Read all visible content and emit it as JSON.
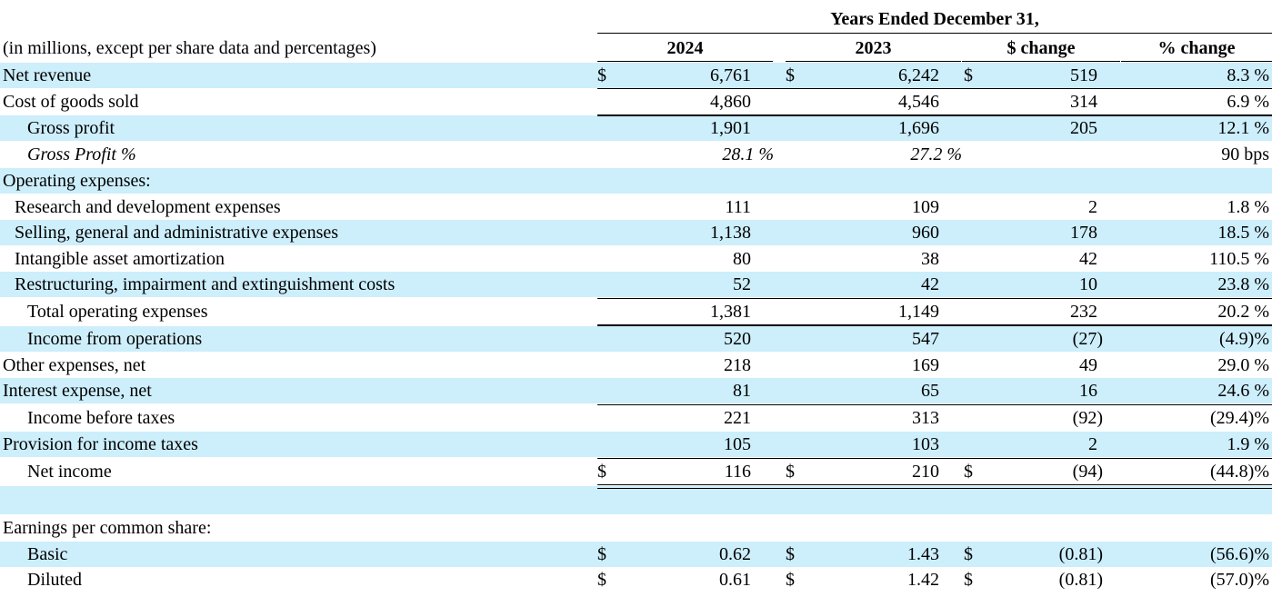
{
  "header": {
    "period_title": "Years Ended December 31,",
    "units_note": "(in millions, except per share data and percentages)",
    "columns": [
      "2024",
      "2023",
      "$ change",
      "% change"
    ]
  },
  "rows": [
    {
      "label": "Net revenue",
      "d": "$",
      "v2024": "6,761",
      "v2023": "6,242",
      "chg": "519",
      "pct": "8.3 %"
    },
    {
      "label": "Cost of goods sold",
      "v2024": "4,860",
      "v2023": "4,546",
      "chg": "314",
      "pct": "6.9 %"
    },
    {
      "label": "Gross profit",
      "v2024": "1,901",
      "v2023": "1,696",
      "chg": "205",
      "pct": "12.1 %"
    },
    {
      "label": "Gross Profit %",
      "v2024": "28.1 %",
      "v2023": "27.2 %",
      "chg": "",
      "pct": "90 bps"
    },
    {
      "label": "Operating expenses:",
      "v2024": "",
      "v2023": "",
      "chg": "",
      "pct": ""
    },
    {
      "label": "Research and development expenses",
      "v2024": "111",
      "v2023": "109",
      "chg": "2",
      "pct": "1.8 %"
    },
    {
      "label": "Selling, general and administrative expenses",
      "v2024": "1,138",
      "v2023": "960",
      "chg": "178",
      "pct": "18.5 %"
    },
    {
      "label": "Intangible asset amortization",
      "v2024": "80",
      "v2023": "38",
      "chg": "42",
      "pct": "110.5 %"
    },
    {
      "label": "Restructuring, impairment and extinguishment costs",
      "v2024": "52",
      "v2023": "42",
      "chg": "10",
      "pct": "23.8 %"
    },
    {
      "label": "Total operating expenses",
      "v2024": "1,381",
      "v2023": "1,149",
      "chg": "232",
      "pct": "20.2 %"
    },
    {
      "label": "Income from operations",
      "v2024": "520",
      "v2023": "547",
      "chg": "(27)",
      "pct": "(4.9)%"
    },
    {
      "label": "Other expenses, net",
      "v2024": "218",
      "v2023": "169",
      "chg": "49",
      "pct": "29.0 %"
    },
    {
      "label": "Interest expense, net",
      "v2024": "81",
      "v2023": "65",
      "chg": "16",
      "pct": "24.6 %"
    },
    {
      "label": "Income before taxes",
      "v2024": "221",
      "v2023": "313",
      "chg": "(92)",
      "pct": "(29.4)%"
    },
    {
      "label": "Provision for income taxes",
      "v2024": "105",
      "v2023": "103",
      "chg": "2",
      "pct": "1.9 %"
    },
    {
      "label": "Net income",
      "d": "$",
      "v2024": "116",
      "v2023": "210",
      "chg": "(94)",
      "pct": "(44.8)%"
    },
    {
      "label": "",
      "v2024": "",
      "v2023": "",
      "chg": "",
      "pct": ""
    },
    {
      "label": "Earnings per common share:",
      "v2024": "",
      "v2023": "",
      "chg": "",
      "pct": ""
    },
    {
      "label": "Basic",
      "d": "$",
      "v2024": "0.62",
      "v2023": "1.43",
      "chg": "(0.81)",
      "pct": "(56.6)%"
    },
    {
      "label": "Diluted",
      "d": "$",
      "v2024": "0.61",
      "v2023": "1.42",
      "chg": "(0.81)",
      "pct": "(57.0)%"
    }
  ]
}
